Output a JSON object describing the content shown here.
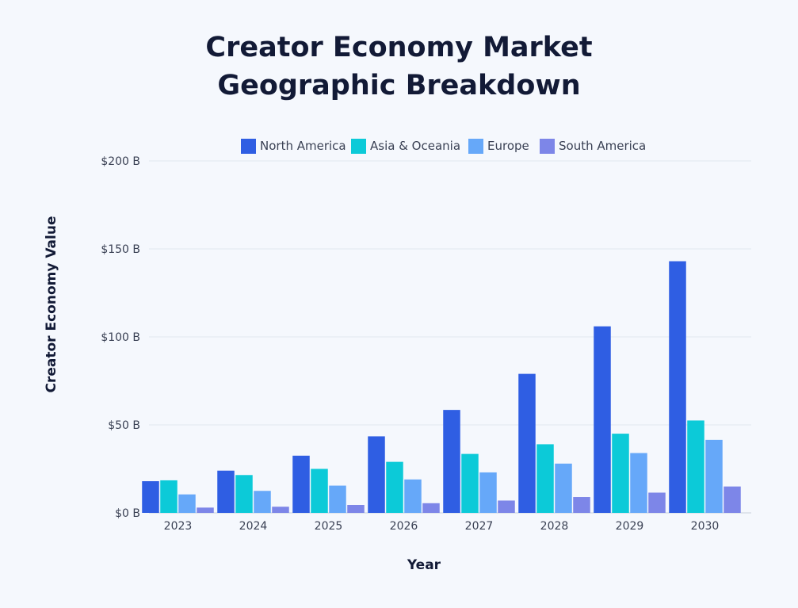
{
  "title_lines": [
    "Creator Economy Market",
    "Geographic Breakdown"
  ],
  "chart_data": {
    "type": "bar",
    "title": "Creator Economy Market Geographic Breakdown",
    "xlabel": "Year",
    "ylabel": "Creator Economy Value",
    "ylim": [
      0,
      200
    ],
    "y_unit": "$ B",
    "y_ticks": [
      0,
      50,
      100,
      150,
      200
    ],
    "y_tick_labels": [
      "$0 B",
      "$50 B",
      "$100 B",
      "$150 B",
      "$200 B"
    ],
    "grid": true,
    "legend_position": "top",
    "categories": [
      "2023",
      "2024",
      "2025",
      "2026",
      "2027",
      "2028",
      "2029",
      "2030"
    ],
    "series": [
      {
        "name": "North America",
        "color": "#2f5ee3",
        "values": [
          18,
          24,
          32.5,
          43.5,
          58.5,
          79,
          106,
          143
        ]
      },
      {
        "name": "Asia & Oceania",
        "color": "#0ccad8",
        "values": [
          18.5,
          21.5,
          25,
          29,
          33.5,
          39,
          45,
          52.5
        ]
      },
      {
        "name": "Europe",
        "color": "#66a8f9",
        "values": [
          10.5,
          12.5,
          15.5,
          19,
          23,
          28,
          34,
          41.5
        ]
      },
      {
        "name": "South America",
        "color": "#7d86e8",
        "values": [
          3,
          3.5,
          4.5,
          5.5,
          7,
          9,
          11.5,
          15
        ]
      }
    ]
  }
}
